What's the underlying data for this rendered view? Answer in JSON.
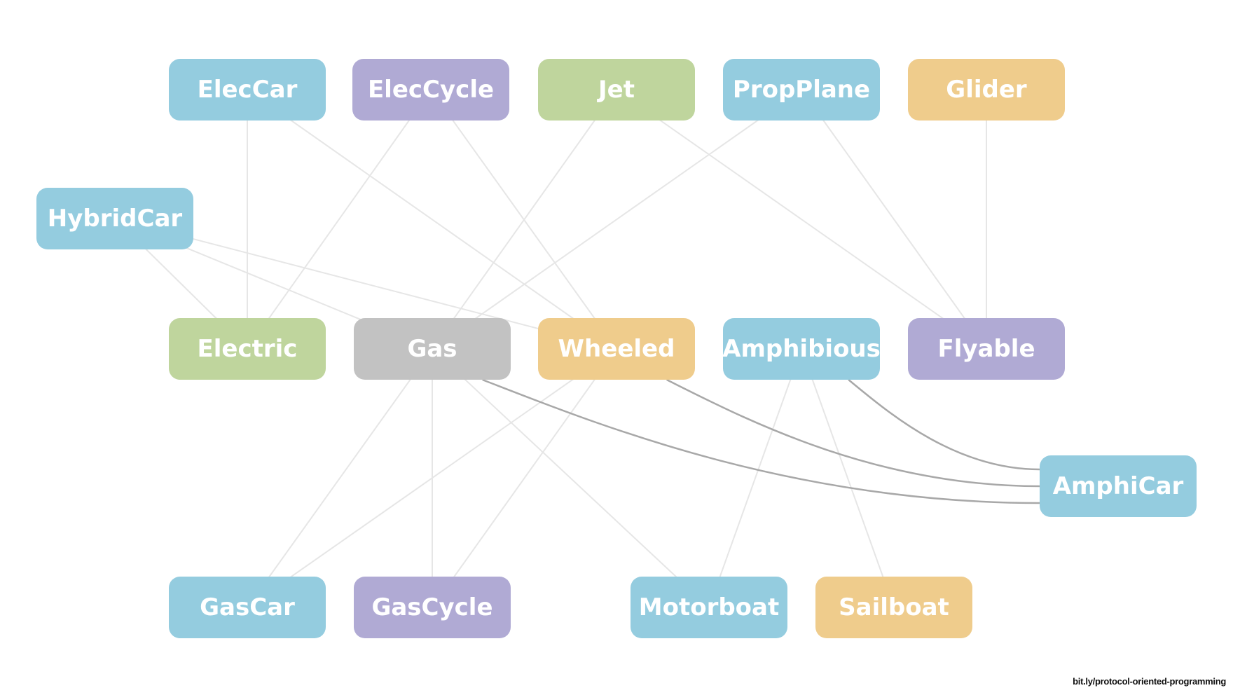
{
  "colors": {
    "blue": "#94ccdf",
    "purple": "#b0aad4",
    "green": "#bfd59d",
    "orange": "#efcc8c",
    "gray": "#c2c2c2",
    "edge_light": "#e6e6e6",
    "edge_dark": "#a8a8a8"
  },
  "nodes": [
    {
      "id": "eleccar",
      "label": "ElecCar",
      "color": "blue"
    },
    {
      "id": "eleccycle",
      "label": "ElecCycle",
      "color": "purple"
    },
    {
      "id": "jet",
      "label": "Jet",
      "color": "green"
    },
    {
      "id": "propplane",
      "label": "PropPlane",
      "color": "blue"
    },
    {
      "id": "glider",
      "label": "Glider",
      "color": "orange"
    },
    {
      "id": "hybridcar",
      "label": "HybridCar",
      "color": "blue"
    },
    {
      "id": "electric",
      "label": "Electric",
      "color": "green"
    },
    {
      "id": "gas",
      "label": "Gas",
      "color": "gray"
    },
    {
      "id": "wheeled",
      "label": "Wheeled",
      "color": "orange"
    },
    {
      "id": "amphibious",
      "label": "Amphibious",
      "color": "blue"
    },
    {
      "id": "flyable",
      "label": "Flyable",
      "color": "purple"
    },
    {
      "id": "amphicar",
      "label": "AmphiCar",
      "color": "blue"
    },
    {
      "id": "gascar",
      "label": "GasCar",
      "color": "blue"
    },
    {
      "id": "gascycle",
      "label": "GasCycle",
      "color": "purple"
    },
    {
      "id": "motorboat",
      "label": "Motorboat",
      "color": "blue"
    },
    {
      "id": "sailboat",
      "label": "Sailboat",
      "color": "orange"
    }
  ],
  "edges": [
    {
      "from": "eleccar",
      "to": "electric",
      "style": "light"
    },
    {
      "from": "eleccar",
      "to": "wheeled",
      "style": "light"
    },
    {
      "from": "eleccycle",
      "to": "electric",
      "style": "light"
    },
    {
      "from": "eleccycle",
      "to": "wheeled",
      "style": "light"
    },
    {
      "from": "jet",
      "to": "gas",
      "style": "light"
    },
    {
      "from": "jet",
      "to": "flyable",
      "style": "light"
    },
    {
      "from": "propplane",
      "to": "gas",
      "style": "light"
    },
    {
      "from": "propplane",
      "to": "flyable",
      "style": "light"
    },
    {
      "from": "glider",
      "to": "flyable",
      "style": "light"
    },
    {
      "from": "hybridcar",
      "to": "electric",
      "style": "light"
    },
    {
      "from": "hybridcar",
      "to": "gas",
      "style": "light"
    },
    {
      "from": "hybridcar",
      "to": "wheeled",
      "style": "light"
    },
    {
      "from": "gascar",
      "to": "gas",
      "style": "light"
    },
    {
      "from": "gascar",
      "to": "wheeled",
      "style": "light"
    },
    {
      "from": "gascycle",
      "to": "gas",
      "style": "light"
    },
    {
      "from": "gascycle",
      "to": "wheeled",
      "style": "light"
    },
    {
      "from": "motorboat",
      "to": "gas",
      "style": "light"
    },
    {
      "from": "motorboat",
      "to": "amphibious",
      "style": "light"
    },
    {
      "from": "sailboat",
      "to": "amphibious",
      "style": "light"
    },
    {
      "from": "amphicar",
      "to": "gas",
      "style": "dark"
    },
    {
      "from": "amphicar",
      "to": "wheeled",
      "style": "dark"
    },
    {
      "from": "amphicar",
      "to": "amphibious",
      "style": "dark"
    }
  ],
  "credit": "bit.ly/protocol-oriented-programming"
}
